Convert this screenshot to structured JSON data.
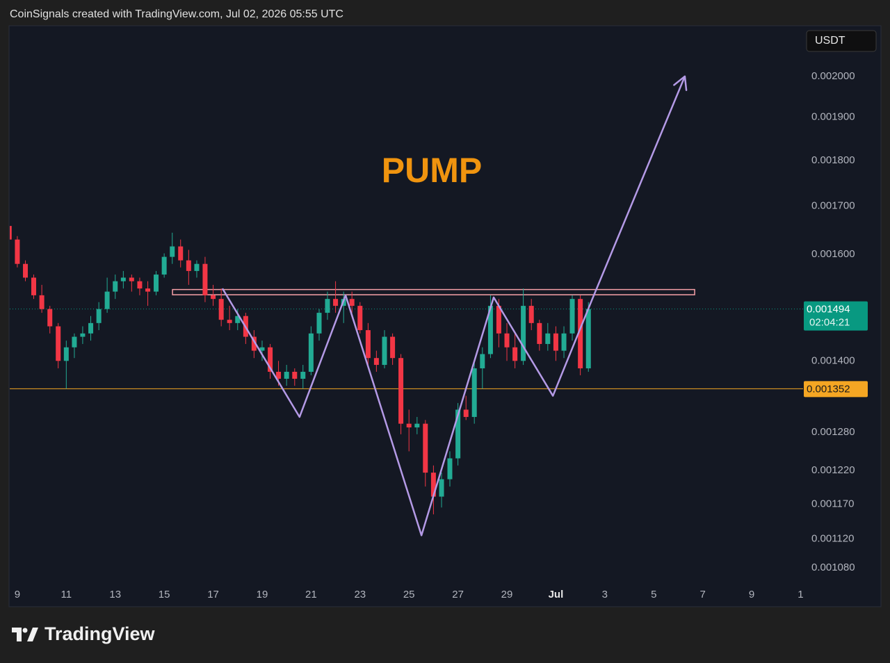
{
  "header": "CoinSignals created with TradingView.com, Jul 02, 2026 05:55 UTC",
  "footer_brand": "TradingView",
  "chart_data": {
    "type": "candlestick",
    "currency": "USDT",
    "annotation": "PUMP",
    "log_scale": true,
    "up_color": "#22ab94",
    "down_color": "#f23645",
    "xlim": [
      -0.31,
      32.1
    ],
    "ylim": [
      0.001056,
      0.002131
    ],
    "xticks": [
      {
        "value": 0,
        "label": "9"
      },
      {
        "value": 2,
        "label": "11"
      },
      {
        "value": 4,
        "label": "13"
      },
      {
        "value": 6,
        "label": "15"
      },
      {
        "value": 8,
        "label": "17"
      },
      {
        "value": 10,
        "label": "19"
      },
      {
        "value": 12,
        "label": "21"
      },
      {
        "value": 14,
        "label": "23"
      },
      {
        "value": 16,
        "label": "25"
      },
      {
        "value": 18,
        "label": "27"
      },
      {
        "value": 20,
        "label": "29"
      },
      {
        "value": 22,
        "label": "Jul"
      },
      {
        "value": 24,
        "label": "3"
      },
      {
        "value": 26,
        "label": "5"
      },
      {
        "value": 28,
        "label": "7"
      },
      {
        "value": 30,
        "label": "9"
      },
      {
        "value": 32,
        "label": "1"
      }
    ],
    "yticks": [
      {
        "value": 0.002,
        "label": "0.002000"
      },
      {
        "value": 0.0019,
        "label": "0.001900"
      },
      {
        "value": 0.0018,
        "label": "0.001800"
      },
      {
        "value": 0.0017,
        "label": "0.001700"
      },
      {
        "value": 0.0016,
        "label": "0.001600"
      },
      {
        "value": 0.0014,
        "label": "0.001400"
      },
      {
        "value": 0.00128,
        "label": "0.001280"
      },
      {
        "value": 0.00122,
        "label": "0.001220"
      },
      {
        "value": 0.00117,
        "label": "0.001170"
      },
      {
        "value": 0.00112,
        "label": "0.001120"
      },
      {
        "value": 0.00108,
        "label": "0.001080"
      }
    ],
    "x": [
      -0.33,
      0,
      0.33,
      0.67,
      1,
      1.33,
      1.67,
      2,
      2.33,
      2.67,
      3,
      3.33,
      3.67,
      4,
      4.33,
      4.67,
      5,
      5.33,
      5.67,
      6,
      6.33,
      6.67,
      7,
      7.33,
      7.67,
      8,
      8.33,
      8.67,
      9,
      9.33,
      9.67,
      10,
      10.33,
      10.67,
      11,
      11.33,
      11.67,
      12,
      12.33,
      12.67,
      13,
      13.33,
      13.67,
      14,
      14.33,
      14.67,
      15,
      15.33,
      15.67,
      16,
      16.33,
      16.67,
      17,
      17.33,
      17.67,
      18,
      18.33,
      18.67,
      19,
      19.33,
      19.67,
      20,
      20.33,
      20.67,
      21,
      21.33,
      21.67,
      22,
      22.33,
      22.67,
      23,
      23.33
    ],
    "candles": [
      [
        0.001658,
        0.001666,
        0.001623,
        0.00163
      ],
      [
        0.00163,
        0.001637,
        0.001574,
        0.001581
      ],
      [
        0.001581,
        0.001588,
        0.001547,
        0.001554
      ],
      [
        0.001554,
        0.00156,
        0.001513,
        0.00152
      ],
      [
        0.00152,
        0.00154,
        0.001487,
        0.001494
      ],
      [
        0.001494,
        0.0015,
        0.001449,
        0.001462
      ],
      [
        0.001462,
        0.001468,
        0.001387,
        0.0014
      ],
      [
        0.0014,
        0.001436,
        0.001352,
        0.001424
      ],
      [
        0.001424,
        0.001449,
        0.001405,
        0.001443
      ],
      [
        0.001443,
        0.001462,
        0.00143,
        0.001449
      ],
      [
        0.001449,
        0.001481,
        0.001436,
        0.001468
      ],
      [
        0.001468,
        0.001507,
        0.001455,
        0.001494
      ],
      [
        0.001494,
        0.001554,
        0.001487,
        0.001527
      ],
      [
        0.001527,
        0.00156,
        0.001513,
        0.001547
      ],
      [
        0.001547,
        0.001567,
        0.001533,
        0.001554
      ],
      [
        0.001554,
        0.00156,
        0.001527,
        0.001547
      ],
      [
        0.001547,
        0.001554,
        0.00152,
        0.001533
      ],
      [
        0.001533,
        0.001547,
        0.0015,
        0.001527
      ],
      [
        0.001527,
        0.001567,
        0.00152,
        0.00156
      ],
      [
        0.00156,
        0.001602,
        0.001554,
        0.001595
      ],
      [
        0.001595,
        0.001644,
        0.001581,
        0.001616
      ],
      [
        0.001616,
        0.00163,
        0.001574,
        0.001588
      ],
      [
        0.001588,
        0.001609,
        0.00154,
        0.001567
      ],
      [
        0.001567,
        0.001588,
        0.001554,
        0.001581
      ],
      [
        0.001581,
        0.001595,
        0.001507,
        0.00152
      ],
      [
        0.00152,
        0.00154,
        0.0015,
        0.001513
      ],
      [
        0.001513,
        0.001533,
        0.001462,
        0.001474
      ],
      [
        0.001474,
        0.0015,
        0.001455,
        0.001468
      ],
      [
        0.001468,
        0.001494,
        0.001455,
        0.001481
      ],
      [
        0.001481,
        0.001487,
        0.00143,
        0.001443
      ],
      [
        0.001443,
        0.001455,
        0.001405,
        0.001418
      ],
      [
        0.001418,
        0.001436,
        0.0014,
        0.001424
      ],
      [
        0.001424,
        0.00143,
        0.001369,
        0.001381
      ],
      [
        0.001381,
        0.0014,
        0.001357,
        0.001369
      ],
      [
        0.001369,
        0.001393,
        0.001357,
        0.001381
      ],
      [
        0.001381,
        0.001387,
        0.001357,
        0.001369
      ],
      [
        0.001369,
        0.001393,
        0.001352,
        0.001381
      ],
      [
        0.001381,
        0.001462,
        0.001375,
        0.001449
      ],
      [
        0.001449,
        0.001494,
        0.001436,
        0.001487
      ],
      [
        0.001487,
        0.001527,
        0.001474,
        0.001513
      ],
      [
        0.001513,
        0.001547,
        0.001487,
        0.0015
      ],
      [
        0.0015,
        0.001527,
        0.001468,
        0.001513
      ],
      [
        0.001513,
        0.001527,
        0.001487,
        0.0015
      ],
      [
        0.0015,
        0.001507,
        0.001449,
        0.001455
      ],
      [
        0.001455,
        0.001468,
        0.001393,
        0.001405
      ],
      [
        0.001405,
        0.001418,
        0.001381,
        0.001393
      ],
      [
        0.001393,
        0.001455,
        0.001387,
        0.001443
      ],
      [
        0.001443,
        0.001449,
        0.001393,
        0.001405
      ],
      [
        0.001405,
        0.001412,
        0.001277,
        0.001294
      ],
      [
        0.001294,
        0.001317,
        0.00125,
        0.001288
      ],
      [
        0.001288,
        0.001305,
        0.001277,
        0.001294
      ],
      [
        0.001294,
        0.0013,
        0.001196,
        0.001217
      ],
      [
        0.001217,
        0.001228,
        0.001155,
        0.001181
      ],
      [
        0.001181,
        0.001217,
        0.001165,
        0.001207
      ],
      [
        0.001207,
        0.00125,
        0.001196,
        0.001239
      ],
      [
        0.001239,
        0.001328,
        0.001228,
        0.001317
      ],
      [
        0.001317,
        0.00134,
        0.0013,
        0.001305
      ],
      [
        0.001305,
        0.0014,
        0.001294,
        0.001387
      ],
      [
        0.001387,
        0.001424,
        0.001352,
        0.001412
      ],
      [
        0.001412,
        0.00152,
        0.001405,
        0.0015
      ],
      [
        0.0015,
        0.001513,
        0.001424,
        0.001449
      ],
      [
        0.001449,
        0.001468,
        0.0014,
        0.001424
      ],
      [
        0.001424,
        0.001449,
        0.001387,
        0.0014
      ],
      [
        0.0014,
        0.001533,
        0.001393,
        0.0015
      ],
      [
        0.0015,
        0.001513,
        0.001455,
        0.001468
      ],
      [
        0.001468,
        0.001474,
        0.001418,
        0.00143
      ],
      [
        0.00143,
        0.001468,
        0.001418,
        0.001449
      ],
      [
        0.001449,
        0.001462,
        0.0014,
        0.001418
      ],
      [
        0.001418,
        0.001462,
        0.001405,
        0.001449
      ],
      [
        0.001449,
        0.00152,
        0.001436,
        0.001513
      ],
      [
        0.001513,
        0.00152,
        0.001375,
        0.001387
      ],
      [
        0.001387,
        0.001507,
        0.001381,
        0.001494
      ]
    ],
    "last_price": 0.001494,
    "last_price_color": "#089981",
    "countdown": "02:04:21",
    "level": 0.001352,
    "level_color": "#f5a623",
    "resistance_zone": {
      "x": [
        6.34,
        27.67
      ],
      "y": [
        0.001521,
        0.001531
      ],
      "color": "#f7a1a8"
    },
    "pattern_line": {
      "x": [
        8.38,
        11.53,
        13.41,
        16.51,
        19.46,
        21.88,
        23.49,
        27.27
      ],
      "y": [
        0.001533,
        0.001305,
        0.00152,
        0.001125,
        0.001516,
        0.00134,
        0.001513,
        0.002
      ],
      "color": "#b49ae6"
    }
  }
}
